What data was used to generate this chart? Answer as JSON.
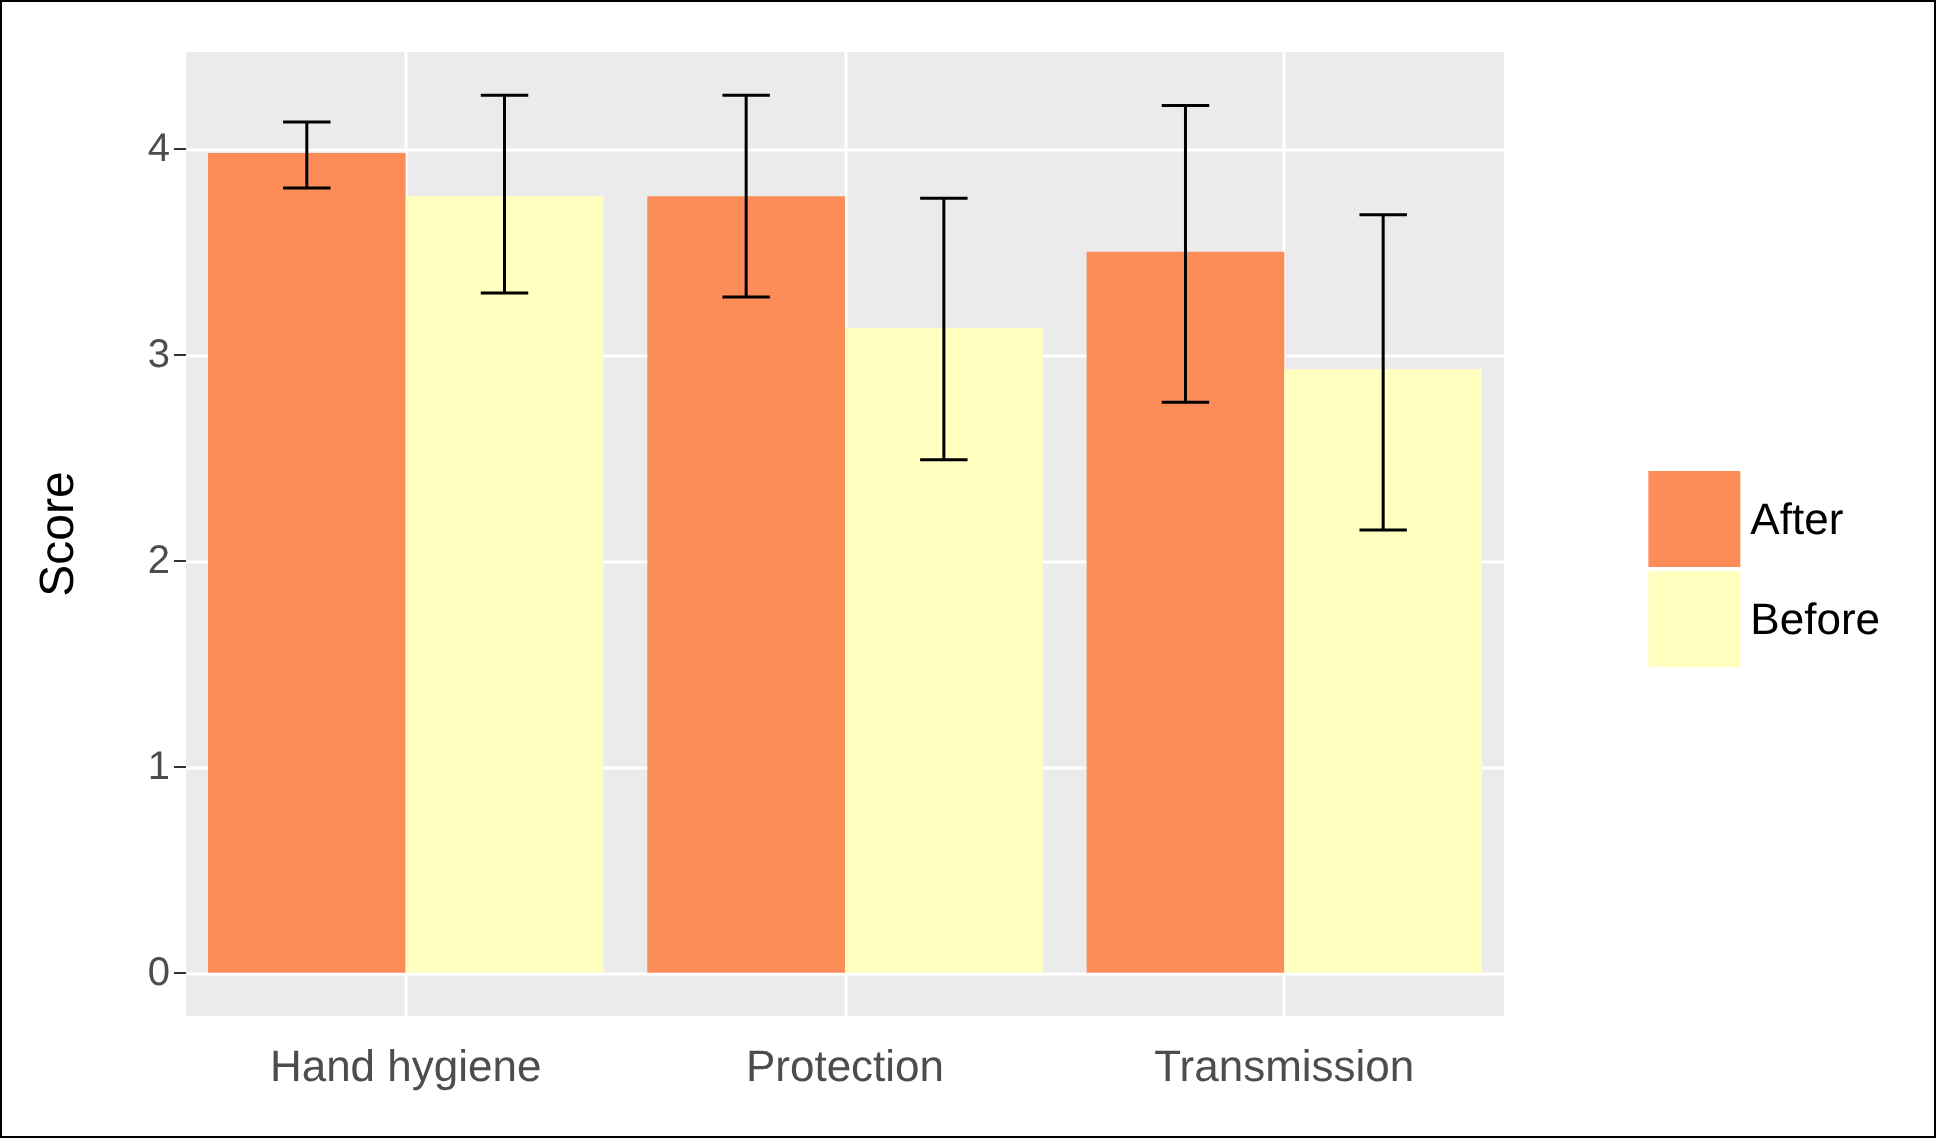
{
  "chart_data": {
    "type": "bar",
    "ylabel": "Score",
    "categories": [
      "Hand hygiene",
      "Protection",
      "Transmission"
    ],
    "series": [
      {
        "name": "After",
        "color": "#fc8d59",
        "values": [
          3.98,
          3.77,
          3.5
        ],
        "errors": [
          [
            3.81,
            4.13
          ],
          [
            3.28,
            4.26
          ],
          [
            2.77,
            4.21
          ]
        ]
      },
      {
        "name": "Before",
        "color": "#ffffbf",
        "values": [
          3.77,
          3.13,
          2.93
        ],
        "errors": [
          [
            3.3,
            4.26
          ],
          [
            2.49,
            3.76
          ],
          [
            2.15,
            3.68
          ]
        ]
      }
    ],
    "ylim": [
      -0.21,
      4.47
    ],
    "yticks": [
      0,
      1,
      2,
      3,
      4
    ],
    "grid": true,
    "legend": "right"
  }
}
